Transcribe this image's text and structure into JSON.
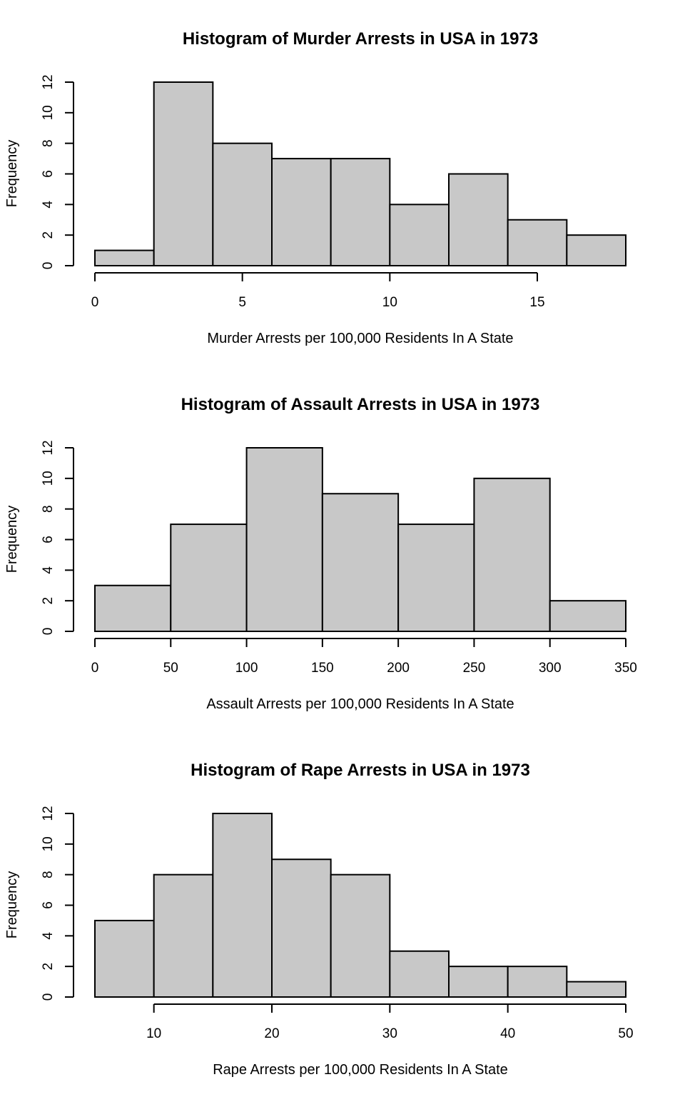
{
  "chart_data": [
    {
      "type": "bar",
      "title": "Histogram of Murder Arrests in USA in 1973",
      "xlabel": "Murder Arrests per 100,000 Residents In A State",
      "ylabel": "Frequency",
      "bin_edges": [
        0,
        2,
        4,
        6,
        8,
        10,
        12,
        14,
        16,
        18
      ],
      "values": [
        1,
        12,
        8,
        7,
        7,
        4,
        6,
        3,
        2
      ],
      "xticks": [
        0,
        5,
        10,
        15
      ],
      "xtick_labels": [
        "0",
        "5",
        "10",
        "15"
      ],
      "yticks": [
        0,
        2,
        4,
        6,
        8,
        10,
        12
      ],
      "ytick_labels": [
        "0",
        "2",
        "4",
        "6",
        "8",
        "10",
        "12"
      ],
      "xlim": [
        0,
        18
      ],
      "ylim": [
        0,
        12
      ],
      "grid": false,
      "bar_color": "#c8c8c8"
    },
    {
      "type": "bar",
      "title": "Histogram of Assault Arrests in USA in 1973",
      "xlabel": "Assault Arrests per 100,000 Residents In A State",
      "ylabel": "Frequency",
      "bin_edges": [
        0,
        50,
        100,
        150,
        200,
        250,
        300,
        350
      ],
      "values": [
        3,
        7,
        12,
        9,
        7,
        10,
        2
      ],
      "xticks": [
        0,
        50,
        100,
        150,
        200,
        250,
        300,
        350
      ],
      "xtick_labels": [
        "0",
        "50",
        "100",
        "150",
        "200",
        "250",
        "300",
        "350"
      ],
      "yticks": [
        0,
        2,
        4,
        6,
        8,
        10,
        12
      ],
      "ytick_labels": [
        "0",
        "2",
        "4",
        "6",
        "8",
        "10",
        "12"
      ],
      "xlim": [
        0,
        350
      ],
      "ylim": [
        0,
        12
      ],
      "grid": false,
      "bar_color": "#c8c8c8"
    },
    {
      "type": "bar",
      "title": "Histogram of Rape Arrests in USA in 1973",
      "xlabel": "Rape Arrests per 100,000 Residents In A State",
      "ylabel": "Frequency",
      "bin_edges": [
        5,
        10,
        15,
        20,
        25,
        30,
        35,
        40,
        45,
        50
      ],
      "values": [
        5,
        8,
        12,
        9,
        8,
        3,
        2,
        2,
        1
      ],
      "xticks": [
        10,
        20,
        30,
        40,
        50
      ],
      "xtick_labels": [
        "10",
        "20",
        "30",
        "40",
        "50"
      ],
      "yticks": [
        0,
        2,
        4,
        6,
        8,
        10,
        12
      ],
      "ytick_labels": [
        "0",
        "2",
        "4",
        "6",
        "8",
        "10",
        "12"
      ],
      "xlim": [
        5,
        50
      ],
      "ylim": [
        0,
        12
      ],
      "grid": false,
      "bar_color": "#c8c8c8"
    }
  ]
}
